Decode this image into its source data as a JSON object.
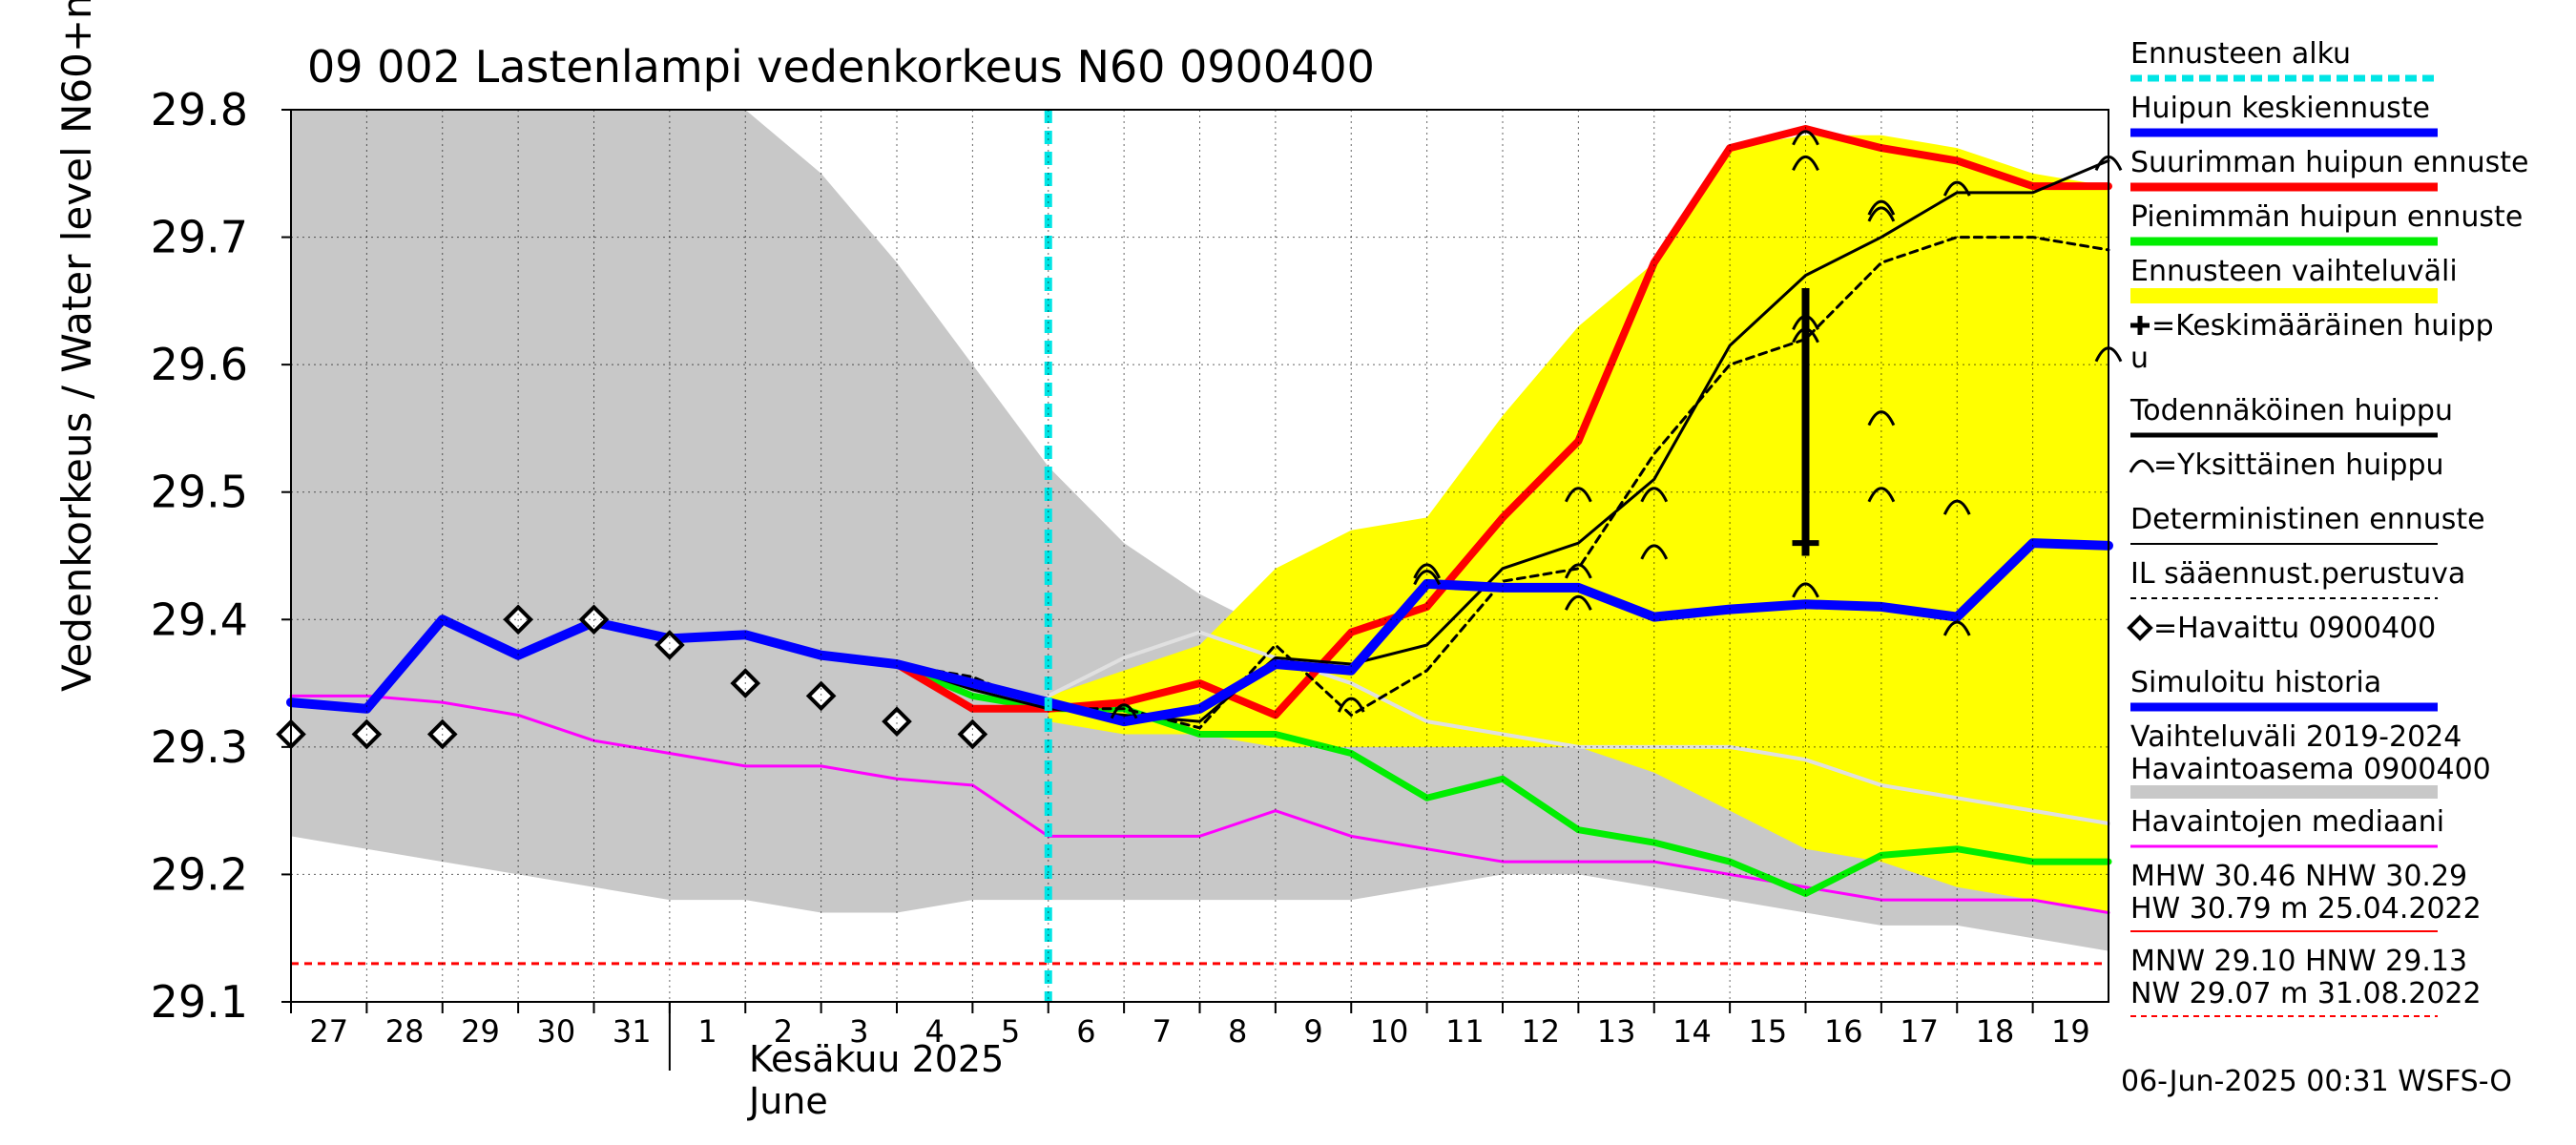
{
  "chart_data": {
    "type": "line",
    "title": "09 002 Lastenlampi vedenkorkeus N60 0900400",
    "ylabel": "Vedenkorkeus / Water level   N60+m",
    "ylim": [
      29.1,
      29.8
    ],
    "yticks": [
      "29.8",
      "29.7",
      "29.6",
      "29.5",
      "29.4",
      "29.3",
      "29.2",
      "29.1"
    ],
    "xlim": [
      0,
      24
    ],
    "xticks": [
      "27",
      "28",
      "29",
      "30",
      "31",
      "1",
      "2",
      "3",
      "4",
      "5",
      "6",
      "7",
      "8",
      "9",
      "10",
      "11",
      "12",
      "13",
      "14",
      "15",
      "16",
      "17",
      "18",
      "19"
    ],
    "month_label": "Kesäkuu  2025",
    "month_label_en": "June",
    "forecast_start_x": 10,
    "timestamp": "06-Jun-2025 00:31 WSFS-O",
    "series": [
      {
        "key": "history_range",
        "kind": "band",
        "color": "#c8c8c8",
        "x": [
          0,
          1,
          2,
          3,
          4,
          5,
          6,
          7,
          8,
          9,
          10,
          11,
          12,
          13,
          14,
          15,
          16,
          17,
          18,
          19,
          20,
          21,
          22,
          23,
          24
        ],
        "upper": [
          29.8,
          29.8,
          29.8,
          29.8,
          29.8,
          29.8,
          29.8,
          29.75,
          29.68,
          29.6,
          29.52,
          29.46,
          29.42,
          29.39,
          29.37,
          29.35,
          29.34,
          29.33,
          29.32,
          29.31,
          29.3,
          29.28,
          29.27,
          29.25,
          29.24
        ],
        "lower": [
          29.23,
          29.22,
          29.21,
          29.2,
          29.19,
          29.18,
          29.18,
          29.17,
          29.17,
          29.18,
          29.18,
          29.18,
          29.18,
          29.18,
          29.18,
          29.19,
          29.2,
          29.2,
          29.19,
          29.18,
          29.17,
          29.16,
          29.16,
          29.15,
          29.14
        ]
      },
      {
        "key": "forecast_range",
        "kind": "band",
        "color": "#ffff00",
        "x": [
          10,
          11,
          12,
          13,
          14,
          15,
          16,
          17,
          18,
          19,
          20,
          21,
          22,
          23,
          24
        ],
        "upper": [
          29.34,
          29.36,
          29.38,
          29.44,
          29.47,
          29.48,
          29.56,
          29.63,
          29.68,
          29.77,
          29.78,
          29.78,
          29.77,
          29.75,
          29.74
        ],
        "lower": [
          29.32,
          29.31,
          29.31,
          29.3,
          29.3,
          29.3,
          29.3,
          29.3,
          29.28,
          29.25,
          29.22,
          29.21,
          29.19,
          29.18,
          29.17
        ]
      },
      {
        "key": "median",
        "kind": "line",
        "color": "#ff00ff",
        "width": 3,
        "x": [
          0,
          1,
          2,
          3,
          4,
          5,
          6,
          7,
          8,
          9,
          10,
          11,
          12,
          13,
          14,
          15,
          16,
          17,
          18,
          19,
          20,
          21,
          22,
          23,
          24
        ],
        "y": [
          29.34,
          29.34,
          29.335,
          29.325,
          29.305,
          29.295,
          29.285,
          29.285,
          29.275,
          29.27,
          29.23,
          29.23,
          29.23,
          29.25,
          29.23,
          29.22,
          29.21,
          29.21,
          29.21,
          29.2,
          29.19,
          29.18,
          29.18,
          29.18,
          29.17
        ]
      },
      {
        "key": "historical_line",
        "kind": "line",
        "color": "#e0e0e0",
        "width": 4,
        "x": [
          10,
          11,
          12,
          13,
          14,
          15,
          16,
          17,
          18,
          19,
          20,
          21,
          22,
          23,
          24
        ],
        "y": [
          29.34,
          29.37,
          29.39,
          29.37,
          29.35,
          29.32,
          29.31,
          29.3,
          29.3,
          29.3,
          29.29,
          29.27,
          29.26,
          29.25,
          29.24
        ]
      },
      {
        "key": "min_peak",
        "kind": "line",
        "color": "#00ee00",
        "width": 7,
        "x": [
          8,
          9,
          10,
          11,
          12,
          13,
          14,
          15,
          16,
          17,
          18,
          19,
          20,
          21,
          22,
          23,
          24
        ],
        "y": [
          29.365,
          29.34,
          29.33,
          29.33,
          29.31,
          29.31,
          29.295,
          29.26,
          29.275,
          29.235,
          29.225,
          29.21,
          29.185,
          29.215,
          29.22,
          29.21,
          29.21
        ]
      },
      {
        "key": "max_peak",
        "kind": "line",
        "color": "#ff0000",
        "width": 8,
        "x": [
          8,
          9,
          10,
          11,
          12,
          13,
          14,
          15,
          16,
          17,
          18,
          19,
          20,
          21,
          22,
          23,
          24
        ],
        "y": [
          29.365,
          29.33,
          29.33,
          29.335,
          29.35,
          29.325,
          29.39,
          29.41,
          29.48,
          29.54,
          29.68,
          29.77,
          29.785,
          29.77,
          29.76,
          29.74,
          29.74
        ]
      },
      {
        "key": "il_forecast",
        "kind": "line",
        "color": "#000000",
        "width": 3,
        "dashed": true,
        "x": [
          8,
          9,
          10,
          11,
          12,
          13,
          14,
          15,
          16,
          17,
          18,
          19,
          20,
          21,
          22,
          23,
          24
        ],
        "y": [
          29.365,
          29.355,
          29.33,
          29.33,
          29.315,
          29.38,
          29.325,
          29.36,
          29.43,
          29.44,
          29.53,
          29.6,
          29.62,
          29.68,
          29.7,
          29.7,
          29.69
        ]
      },
      {
        "key": "deterministic",
        "kind": "line",
        "color": "#000000",
        "width": 3,
        "x": [
          8,
          9,
          10,
          11,
          12,
          13,
          14,
          15,
          16,
          17,
          18,
          19,
          20,
          21,
          22,
          23,
          24
        ],
        "y": [
          29.365,
          29.345,
          29.33,
          29.325,
          29.32,
          29.37,
          29.365,
          29.38,
          29.44,
          29.46,
          29.51,
          29.615,
          29.67,
          29.7,
          29.735,
          29.735,
          29.76
        ]
      },
      {
        "key": "mean_peak_line",
        "kind": "line",
        "color": "#0000ff",
        "width": 10,
        "x": [
          0,
          1,
          2,
          3,
          4,
          5,
          6,
          7,
          8,
          9,
          10,
          11,
          12,
          13,
          14,
          15,
          16,
          17,
          18,
          19,
          20,
          21,
          22,
          23,
          24
        ],
        "y": [
          29.335,
          29.33,
          29.4,
          29.372,
          29.398,
          29.385,
          29.388,
          29.372,
          29.365,
          29.35,
          29.335,
          29.32,
          29.33,
          29.365,
          29.36,
          29.428,
          29.425,
          29.425,
          29.402,
          29.408,
          29.412,
          29.41,
          29.402,
          29.46,
          29.458
        ]
      }
    ],
    "observed": {
      "x": [
        0,
        1,
        2,
        3,
        4,
        5,
        6,
        7,
        8,
        9
      ],
      "y": [
        29.31,
        29.31,
        29.31,
        29.4,
        29.4,
        29.38,
        29.35,
        29.34,
        29.32,
        29.31
      ]
    },
    "single_peaks": [
      {
        "x": 11,
        "y": 29.33
      },
      {
        "x": 14,
        "y": 29.335
      },
      {
        "x": 15,
        "y": 29.44
      },
      {
        "x": 15,
        "y": 29.435
      },
      {
        "x": 17,
        "y": 29.5
      },
      {
        "x": 17,
        "y": 29.44
      },
      {
        "x": 17,
        "y": 29.415
      },
      {
        "x": 18,
        "y": 29.5
      },
      {
        "x": 18,
        "y": 29.455
      },
      {
        "x": 20,
        "y": 29.78
      },
      {
        "x": 20,
        "y": 29.76
      },
      {
        "x": 20,
        "y": 29.635
      },
      {
        "x": 20,
        "y": 29.625
      },
      {
        "x": 20,
        "y": 29.425
      },
      {
        "x": 21,
        "y": 29.725
      },
      {
        "x": 21,
        "y": 29.72
      },
      {
        "x": 21,
        "y": 29.56
      },
      {
        "x": 21,
        "y": 29.5
      },
      {
        "x": 22,
        "y": 29.74
      },
      {
        "x": 22,
        "y": 29.49
      },
      {
        "x": 22,
        "y": 29.395
      },
      {
        "x": 24,
        "y": 29.76
      },
      {
        "x": 24,
        "y": 29.61
      }
    ],
    "probable_peak": {
      "x": 20,
      "ymin": 29.45,
      "ymax": 29.66
    },
    "mean_peak": {
      "x": 20,
      "y": 29.46
    },
    "reference_line": {
      "y": 29.13,
      "color": "#ff0000"
    },
    "legend": [
      {
        "label": "Ennusteen alku",
        "color": "#00e5e5",
        "style": "dashed",
        "width": 7
      },
      {
        "label": "Huipun keskiennuste",
        "color": "#0000ff",
        "style": "solid",
        "width": 9
      },
      {
        "label": "Suurimman huipun ennuste",
        "color": "#ff0000",
        "style": "solid",
        "width": 9
      },
      {
        "label": "Pienimmän huipun ennuste",
        "color": "#00ee00",
        "style": "solid",
        "width": 9
      },
      {
        "label": "Ennusteen vaihteluväli",
        "color": "#ffff00",
        "style": "solid",
        "width": 16
      },
      {
        "label": "=Keskimääräinen huipp",
        "label2": "u",
        "symbol": "plus",
        "color": "#000000",
        "style": "none",
        "width": 0
      },
      {
        "label": "Todennäköinen huippu",
        "color": "#000000",
        "style": "solid",
        "width": 5
      },
      {
        "label": "=Yksittäinen huippu",
        "symbol": "arc",
        "color": "#000000",
        "style": "none",
        "width": 0
      },
      {
        "label": "Deterministinen ennuste",
        "color": "#000000",
        "style": "solid",
        "width": 2
      },
      {
        "label": "IL sääennust.perustuva",
        "color": "#000000",
        "style": "dotted",
        "width": 2
      },
      {
        "label": "=Havaittu 0900400",
        "symbol": "diamond",
        "color": "#000000",
        "style": "none",
        "width": 0
      },
      {
        "label": "Simuloitu historia",
        "color": "#0000ff",
        "style": "solid",
        "width": 9
      },
      {
        "label": "Vaihteluväli 2019-2024",
        "label2": " Havaintoasema 0900400",
        "color": "#c8c8c8",
        "style": "solid",
        "width": 14
      },
      {
        "label": "Havaintojen mediaani",
        "color": "#ff00ff",
        "style": "solid",
        "width": 3
      },
      {
        "label": "MHW  30.46 NHW  30.29",
        "label2": "HW  30.79 m 25.04.2022",
        "color": "#ff0000",
        "style": "solid",
        "width": 2
      },
      {
        "label": "MNW  29.10 HNW  29.13",
        "label2": "NW  29.07 m 31.08.2022",
        "color": "#ff0000",
        "style": "dotted",
        "width": 2
      }
    ]
  }
}
